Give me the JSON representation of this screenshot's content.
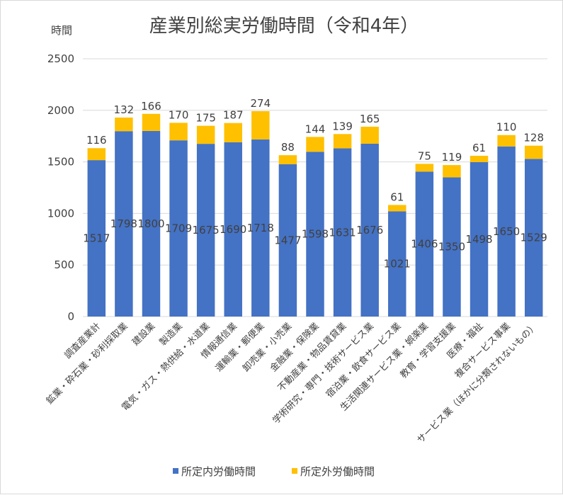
{
  "chart_data": {
    "type": "bar",
    "stacked": true,
    "title": "産業別総実労働時間（令和4年）",
    "ylabel": "時間",
    "ylim": [
      0,
      2500
    ],
    "yticks": [
      "0",
      "500",
      "1000",
      "1500",
      "2000",
      "2500"
    ],
    "grid": true,
    "legend_position": "bottom",
    "categories": [
      "調査産業計",
      "鉱業・砕石業・砂利採取業",
      "建設業",
      "製造業",
      "電気・ガス・熱供給・水道業",
      "情報通信業",
      "運輸業・郵便業",
      "卸売業・小売業",
      "金融業・保険業",
      "不動産業・物品賃貸業",
      "学術研究・専門・技術サービス業",
      "宿泊業・飲食サービス業",
      "生活関連サービス業・娯楽業",
      "教育・学習支援業",
      "医療・福祉",
      "複合サービス事業",
      "サービス業（ほかに分類されないもの）"
    ],
    "series": [
      {
        "name": "所定内労働時間",
        "color": "#4472c4",
        "values": [
          1517,
          1798,
          1800,
          1709,
          1675,
          1690,
          1718,
          1477,
          1598,
          1631,
          1676,
          1021,
          1406,
          1350,
          1498,
          1650,
          1529
        ]
      },
      {
        "name": "所定外労働時間",
        "color": "#ffc000",
        "values": [
          116,
          132,
          166,
          170,
          175,
          187,
          274,
          88,
          144,
          139,
          165,
          61,
          75,
          119,
          61,
          110,
          128
        ]
      }
    ]
  }
}
